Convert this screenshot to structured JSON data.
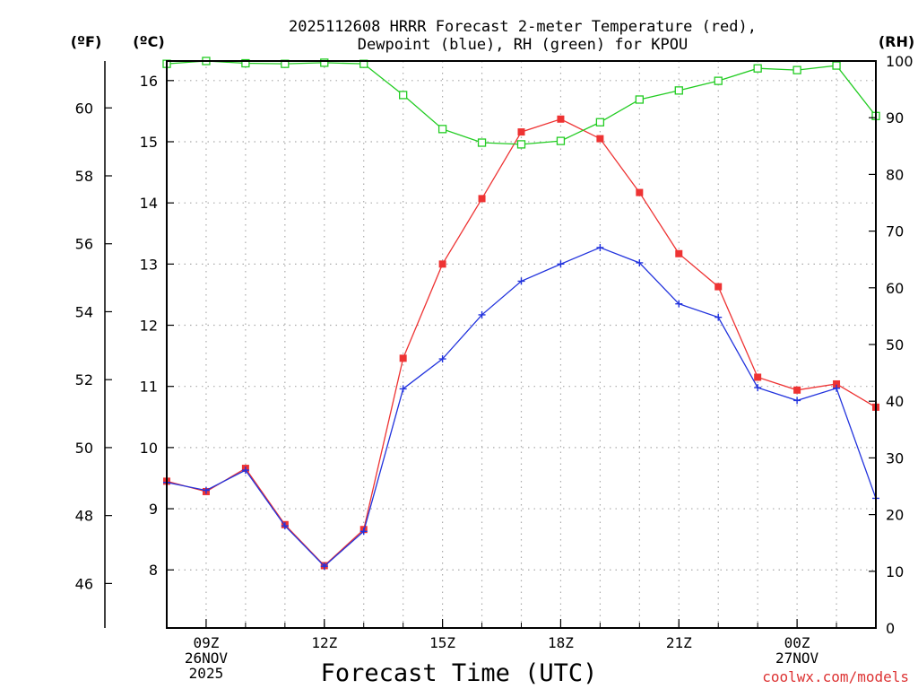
{
  "header": {
    "title_line1": "2025112608 HRRR Forecast 2-meter Temperature (red),",
    "title_line2": "Dewpoint (blue), RH (green) for KPOU"
  },
  "axes": {
    "left_outer_label": "(ºF)",
    "left_inner_label": "(ºC)",
    "right_label": "(RH)",
    "x_title": "Forecast Time (UTC)",
    "x_ticks": [
      {
        "hour": 9,
        "lines": [
          "09Z",
          "26NOV",
          "2025"
        ]
      },
      {
        "hour": 12,
        "lines": [
          "12Z"
        ]
      },
      {
        "hour": 15,
        "lines": [
          "15Z"
        ]
      },
      {
        "hour": 18,
        "lines": [
          "18Z"
        ]
      },
      {
        "hour": 21,
        "lines": [
          "21Z"
        ]
      },
      {
        "hour": 24,
        "lines": [
          "00Z",
          "27NOV"
        ]
      }
    ]
  },
  "credit": "coolwx.com/models",
  "colors": {
    "temperature": "#ee3333",
    "dewpoint": "#2233dd",
    "rh": "#22cc22",
    "grid": "#aaaaaa",
    "credit": "#dd3333"
  },
  "chart_data": {
    "type": "line",
    "title": "2025112608 HRRR Forecast 2-meter Temperature (red), Dewpoint (blue), RH (green) for KPOU",
    "xlabel": "Forecast Time (UTC)",
    "x_unit": "hours since 26NOV2025 00Z",
    "xlim": [
      8,
      26
    ],
    "celsius_axis": {
      "label": "(ºC)",
      "ylim": [
        7.05,
        16.32
      ],
      "ticks": [
        8,
        9,
        10,
        11,
        12,
        13,
        14,
        15,
        16
      ]
    },
    "fahrenheit_axis": {
      "label": "(ºF)",
      "ylim": [
        44.69,
        61.38
      ],
      "ticks": [
        46,
        48,
        50,
        52,
        54,
        56,
        58,
        60
      ]
    },
    "rh_axis": {
      "label": "(RH)",
      "ylim": [
        0,
        100
      ],
      "ticks": [
        0,
        10,
        20,
        30,
        40,
        50,
        60,
        70,
        80,
        90,
        100
      ]
    },
    "x": [
      8,
      9,
      10,
      11,
      12,
      13,
      14,
      15,
      16,
      17,
      18,
      19,
      20,
      21,
      22,
      23,
      24,
      25,
      26
    ],
    "series": [
      {
        "name": "Temperature (ºC)",
        "color": "red",
        "marker": "filled-square",
        "axis": "celsius",
        "values": [
          9.45,
          9.28,
          9.66,
          8.74,
          8.07,
          8.66,
          11.46,
          13.0,
          14.07,
          15.16,
          15.37,
          15.05,
          14.17,
          13.17,
          12.63,
          11.15,
          10.94,
          11.04,
          10.66
        ]
      },
      {
        "name": "Dewpoint (ºC)",
        "color": "blue",
        "marker": "plus",
        "axis": "celsius",
        "values": [
          9.43,
          9.3,
          9.63,
          8.72,
          8.06,
          8.63,
          10.96,
          11.45,
          12.17,
          12.72,
          13.0,
          13.27,
          13.02,
          12.35,
          12.13,
          10.98,
          10.77,
          10.97,
          9.17
        ]
      },
      {
        "name": "RH (%)",
        "color": "green",
        "marker": "open-square",
        "axis": "rh",
        "values": [
          99.5,
          100,
          99.6,
          99.5,
          99.7,
          99.5,
          94,
          88,
          85.6,
          85.3,
          85.9,
          89.2,
          93.2,
          94.8,
          96.5,
          98.7,
          98.4,
          99.2,
          90.3
        ]
      }
    ]
  }
}
